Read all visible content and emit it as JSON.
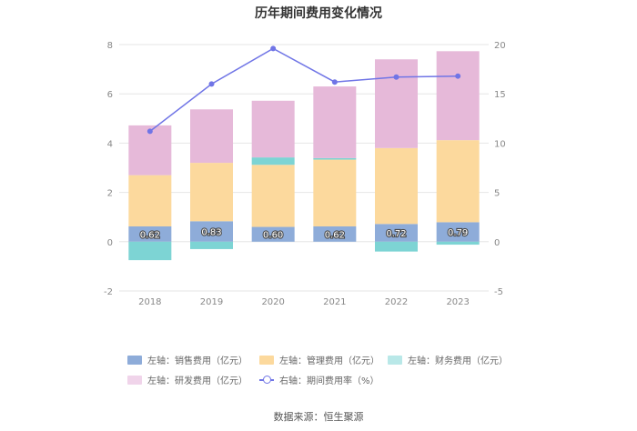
{
  "chart_data": {
    "type": "bar",
    "title": "历年期间费用变化情况",
    "categories": [
      "2018",
      "2019",
      "2020",
      "2021",
      "2022",
      "2023"
    ],
    "left_axis": {
      "ylim": [
        -2,
        8
      ],
      "ticks": [
        "-2",
        "0",
        "2",
        "4",
        "6",
        "8"
      ]
    },
    "right_axis": {
      "ylim": [
        -5,
        20
      ],
      "ticks": [
        "-5",
        "0",
        "5",
        "10",
        "15",
        "20"
      ]
    },
    "series": [
      {
        "name": "左轴：销售费用（亿元）",
        "type": "bar",
        "stack": true,
        "color": "#8eacd9",
        "values": [
          0.62,
          0.83,
          0.6,
          0.62,
          0.72,
          0.79
        ],
        "labels": [
          "0.62",
          "0.83",
          "0.60",
          "0.62",
          "0.72",
          "0.79"
        ]
      },
      {
        "name": "左轴：管理费用（亿元）",
        "type": "bar",
        "stack": true,
        "color": "#fcd99d",
        "values": [
          2.08,
          2.37,
          2.52,
          2.71,
          3.08,
          3.33
        ]
      },
      {
        "name": "左轴：财务费用（亿元）",
        "type": "bar",
        "stack": true,
        "color": "#7dd4d4",
        "values": [
          -0.75,
          -0.3,
          0.3,
          0.06,
          -0.4,
          -0.12
        ]
      },
      {
        "name": "左轴：研发费用（亿元）",
        "type": "bar",
        "stack": true,
        "color": "#e6b9d9",
        "values": [
          2.02,
          2.17,
          2.3,
          2.91,
          3.6,
          3.61
        ]
      },
      {
        "name": "右轴：期间费用率（%）",
        "type": "line",
        "axis": "right",
        "color": "#7075e6",
        "values": [
          11.2,
          16.0,
          19.6,
          16.2,
          16.7,
          16.8
        ]
      }
    ]
  },
  "source": "数据来源：恒生聚源"
}
